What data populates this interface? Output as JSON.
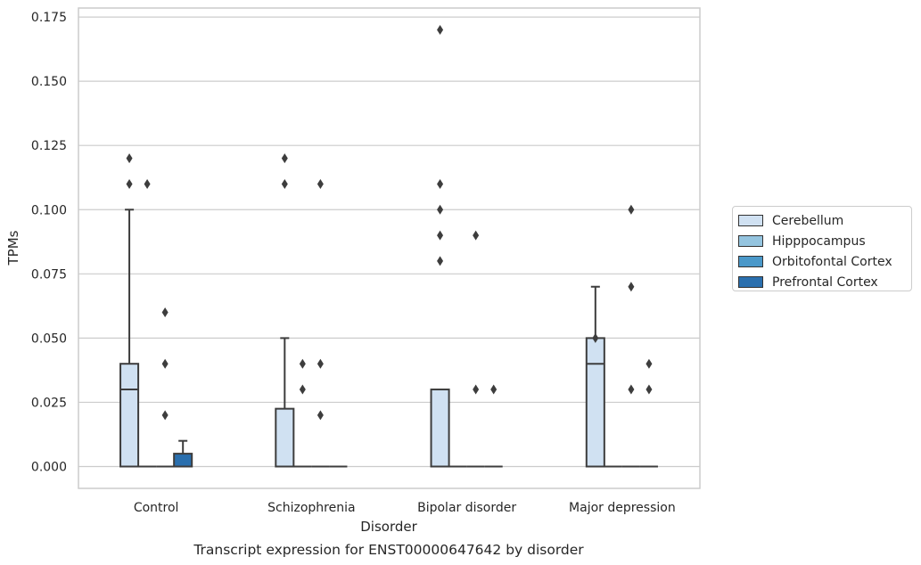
{
  "chart_data": {
    "type": "boxplot",
    "title": "Transcript expression for ENST00000647642 by disorder",
    "xlabel": "Disorder",
    "ylabel": "TPMs",
    "ylim": [
      -0.0085,
      0.1785
    ],
    "yticks": [
      "0.000",
      "0.025",
      "0.050",
      "0.075",
      "0.100",
      "0.125",
      "0.150",
      "0.175"
    ],
    "grid": true,
    "legend_position": "right",
    "categories": [
      "Control",
      "Schizophrenia",
      "Bipolar disorder",
      "Major depression"
    ],
    "series": [
      {
        "name": "Cerebellum",
        "color": "#d0e1f2",
        "boxes": [
          {
            "q1": 0.0,
            "median": 0.03,
            "q3": 0.04,
            "whisker_low": 0.0,
            "whisker_high": 0.1,
            "outliers": [
              0.12,
              0.11
            ]
          },
          {
            "q1": 0.0,
            "median": 0.0,
            "q3": 0.0225,
            "whisker_low": 0.0,
            "whisker_high": 0.05,
            "outliers": [
              0.12,
              0.11
            ]
          },
          {
            "q1": 0.0,
            "median": 0.0,
            "q3": 0.03,
            "whisker_low": 0.0,
            "whisker_high": 0.03,
            "outliers": [
              0.17,
              0.11,
              0.1,
              0.09,
              0.08
            ]
          },
          {
            "q1": 0.0,
            "median": 0.04,
            "q3": 0.05,
            "whisker_low": 0.0,
            "whisker_high": 0.07,
            "outliers": [
              0.05
            ]
          }
        ]
      },
      {
        "name": "Hipppocampus",
        "color": "#94c4df",
        "boxes": [
          {
            "q1": 0.0,
            "median": 0.0,
            "q3": 0.0,
            "whisker_low": 0.0,
            "whisker_high": 0.0,
            "outliers": [
              0.11
            ]
          },
          {
            "q1": 0.0,
            "median": 0.0,
            "q3": 0.0,
            "whisker_low": 0.0,
            "whisker_high": 0.0,
            "outliers": [
              0.04,
              0.03
            ]
          },
          {
            "q1": 0.0,
            "median": 0.0,
            "q3": 0.0,
            "whisker_low": 0.0,
            "whisker_high": 0.0,
            "outliers": []
          },
          {
            "q1": 0.0,
            "median": 0.0,
            "q3": 0.0,
            "whisker_low": 0.0,
            "whisker_high": 0.0,
            "outliers": []
          }
        ]
      },
      {
        "name": "Orbitofontal Cortex",
        "color": "#4a98c9",
        "boxes": [
          {
            "q1": 0.0,
            "median": 0.0,
            "q3": 0.0,
            "whisker_low": 0.0,
            "whisker_high": 0.0,
            "outliers": [
              0.06,
              0.04,
              0.02
            ]
          },
          {
            "q1": 0.0,
            "median": 0.0,
            "q3": 0.0,
            "whisker_low": 0.0,
            "whisker_high": 0.0,
            "outliers": [
              0.11,
              0.04,
              0.02
            ]
          },
          {
            "q1": 0.0,
            "median": 0.0,
            "q3": 0.0,
            "whisker_low": 0.0,
            "whisker_high": 0.0,
            "outliers": [
              0.09,
              0.03
            ]
          },
          {
            "q1": 0.0,
            "median": 0.0,
            "q3": 0.0,
            "whisker_low": 0.0,
            "whisker_high": 0.0,
            "outliers": [
              0.1,
              0.07,
              0.03
            ]
          }
        ]
      },
      {
        "name": "Prefrontal Cortex",
        "color": "#2a6fae",
        "boxes": [
          {
            "q1": 0.0,
            "median": 0.0,
            "q3": 0.005,
            "whisker_low": 0.0,
            "whisker_high": 0.01,
            "outliers": []
          },
          {
            "q1": 0.0,
            "median": 0.0,
            "q3": 0.0,
            "whisker_low": 0.0,
            "whisker_high": 0.0,
            "outliers": []
          },
          {
            "q1": 0.0,
            "median": 0.0,
            "q3": 0.0,
            "whisker_low": 0.0,
            "whisker_high": 0.0,
            "outliers": [
              0.03
            ]
          },
          {
            "q1": 0.0,
            "median": 0.0,
            "q3": 0.0,
            "whisker_low": 0.0,
            "whisker_high": 0.0,
            "outliers": [
              0.04,
              0.03
            ]
          }
        ]
      }
    ]
  }
}
